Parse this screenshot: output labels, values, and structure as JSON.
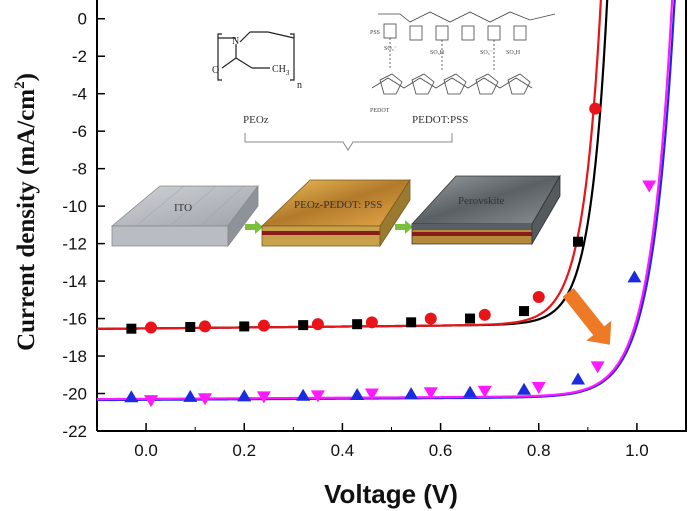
{
  "chart_data": {
    "type": "line",
    "xlabel": "Voltage (V)",
    "ylabel": "Current density (mA/cm²)",
    "ylabel_parts": {
      "main": "Current density (mA/cm",
      "sup": "2",
      "end": ")"
    },
    "xlim": [
      -0.1,
      1.1
    ],
    "ylim": [
      -22,
      1
    ],
    "xticks": [
      0.0,
      0.2,
      0.4,
      0.6,
      0.8,
      1.0
    ],
    "xtick_labels": [
      "0.0",
      "0.2",
      "0.4",
      "0.6",
      "0.8",
      "1.0"
    ],
    "yticks": [
      0,
      -2,
      -4,
      -6,
      -8,
      -10,
      -12,
      -14,
      -16,
      -18,
      -20,
      -22
    ],
    "ytick_labels": [
      "0",
      "-2",
      "-4",
      "-6",
      "-8",
      "-10",
      "-12",
      "-14",
      "-16",
      "-18",
      "-20",
      "-22"
    ],
    "grid": false,
    "legend": "none",
    "series": [
      {
        "color": "#000000",
        "marker": "square",
        "jsc": -16.55,
        "voc": 0.938,
        "curvature": 0.034,
        "points": [
          [
            -0.03,
            -16.54
          ],
          [
            0.09,
            -16.45
          ],
          [
            0.2,
            -16.42
          ],
          [
            0.32,
            -16.35
          ],
          [
            0.43,
            -16.3
          ],
          [
            0.54,
            -16.2
          ],
          [
            0.66,
            -16.0
          ],
          [
            0.77,
            -15.6
          ],
          [
            0.88,
            -11.9
          ]
        ]
      },
      {
        "color": "#e8141a",
        "marker": "circle",
        "jsc": -16.55,
        "voc": 0.925,
        "curvature": 0.036,
        "points": [
          [
            0.01,
            -16.48
          ],
          [
            0.12,
            -16.42
          ],
          [
            0.24,
            -16.38
          ],
          [
            0.35,
            -16.3
          ],
          [
            0.46,
            -16.2
          ],
          [
            0.58,
            -16.0
          ],
          [
            0.69,
            -15.8
          ],
          [
            0.8,
            -14.85
          ],
          [
            0.915,
            -4.8
          ]
        ]
      },
      {
        "color": "#1a2be0",
        "marker": "triangle-up",
        "jsc": -20.35,
        "voc": 1.075,
        "curvature": 0.045,
        "points": [
          [
            -0.03,
            -20.2
          ],
          [
            0.09,
            -20.18
          ],
          [
            0.2,
            -20.15
          ],
          [
            0.32,
            -20.12
          ],
          [
            0.43,
            -20.08
          ],
          [
            0.54,
            -20.03
          ],
          [
            0.66,
            -19.95
          ],
          [
            0.77,
            -19.8
          ],
          [
            0.88,
            -19.25
          ],
          [
            0.995,
            -13.8
          ]
        ]
      },
      {
        "color": "#ff19ff",
        "marker": "triangle-down",
        "jsc": -20.3,
        "voc": 1.07,
        "curvature": 0.044,
        "points": [
          [
            0.01,
            -20.35
          ],
          [
            0.12,
            -20.25
          ],
          [
            0.24,
            -20.15
          ],
          [
            0.35,
            -20.1
          ],
          [
            0.46,
            -20.0
          ],
          [
            0.58,
            -19.93
          ],
          [
            0.69,
            -19.85
          ],
          [
            0.8,
            -19.65
          ],
          [
            0.92,
            -18.55
          ],
          [
            1.025,
            -8.9
          ]
        ]
      }
    ],
    "annotation": {
      "type": "arrow",
      "color": "#ee7a27",
      "from": [
        0.86,
        -14.6
      ],
      "to": [
        0.945,
        -17.4
      ]
    }
  },
  "inset": {
    "peoz_label": "PEOz",
    "pedot_label": "PEDOT:PSS",
    "peoz_structure": {
      "n_atom": "N",
      "o_atom": "O",
      "ch3": "CH",
      "ch3_sub": "3",
      "repeat_n": "n"
    },
    "pedot_structure": {
      "pss_tag": "PSS",
      "pedot_tag": "PEDOT",
      "so3": "SO₃⁻",
      "so3h": "SO₃H"
    },
    "layers": [
      {
        "label": "ITO",
        "color": "#b3b7bd"
      },
      {
        "label": "PEOz-PEDOT: PSS",
        "color": "#c08a3a"
      },
      {
        "label": "Perovskite",
        "color": "#6f7478"
      }
    ],
    "flow_arrow_color": "#7cbf3c"
  }
}
